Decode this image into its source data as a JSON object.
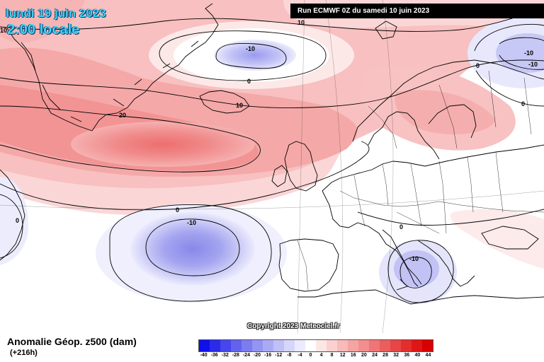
{
  "header": {
    "date": "lundi 19 juin 2023",
    "local_time": "2:00 locale",
    "run_info": "Run ECMWF 0Z du samedi 10 juin 2023"
  },
  "copyright": "Copyright 2023 Meteociel.fr",
  "footer": {
    "product": "Anomalie Géop. z500 (dam)",
    "lead_time": "(+216h)"
  },
  "legend": {
    "unit": "dam",
    "ticks": [
      "-40",
      "-36",
      "-32",
      "-28",
      "-24",
      "-20",
      "-16",
      "-12",
      "-8",
      "-4",
      "0",
      "4",
      "8",
      "12",
      "16",
      "20",
      "24",
      "28",
      "32",
      "36",
      "40",
      "44"
    ],
    "colors": [
      "#1010e8",
      "#2a2ae8",
      "#4646ea",
      "#6262ee",
      "#7c7cf0",
      "#9494f2",
      "#aaaaf4",
      "#c0c0f7",
      "#d6d6fa",
      "#ebebfd",
      "#ffffff",
      "#fde6e6",
      "#fbd0d0",
      "#f8baba",
      "#f5a4a4",
      "#f28e8e",
      "#ee7676",
      "#ea5e5e",
      "#e64646",
      "#e22e2e",
      "#de1616",
      "#d80000"
    ]
  },
  "map": {
    "ocean_color": "#ffffff",
    "contour_labels": [
      {
        "text": "10"
      },
      {
        "text": "10"
      },
      {
        "text": "-10"
      },
      {
        "text": "0"
      },
      {
        "text": "10"
      },
      {
        "text": "20"
      },
      {
        "text": "0"
      },
      {
        "text": "-10"
      },
      {
        "text": "0"
      },
      {
        "text": "0"
      },
      {
        "text": "-10"
      },
      {
        "text": "-10"
      },
      {
        "text": "-10"
      },
      {
        "text": "0"
      },
      {
        "text": "0"
      }
    ]
  }
}
